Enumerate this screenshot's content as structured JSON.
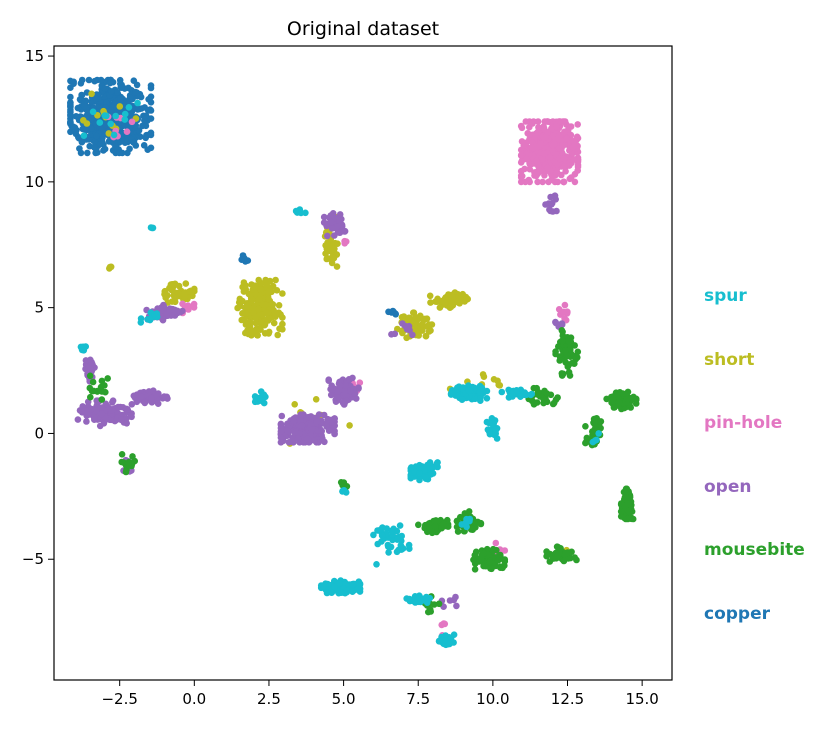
{
  "chart_data": {
    "type": "scatter",
    "title": "Original dataset",
    "xlabel": "",
    "ylabel": "",
    "xlim": [
      -4.7,
      16.0
    ],
    "ylim": [
      -9.8,
      15.4
    ],
    "x_ticks": [
      -2.5,
      0.0,
      2.5,
      5.0,
      7.5,
      10.0,
      12.5,
      15.0
    ],
    "x_tick_labels": [
      "−2.5",
      "0.0",
      "2.5",
      "5.0",
      "7.5",
      "10.0",
      "12.5",
      "15.0"
    ],
    "y_ticks": [
      -5,
      0,
      5,
      10,
      15
    ],
    "y_tick_labels": [
      "−5",
      "0",
      "5",
      "10",
      "15"
    ],
    "grid": false,
    "legend_placement": "right-outside",
    "legend": [
      {
        "label": "spur",
        "color": "#17becf"
      },
      {
        "label": "short",
        "color": "#bcbd22"
      },
      {
        "label": "pin-hole",
        "color": "#e377c2"
      },
      {
        "label": "open",
        "color": "#9467bd"
      },
      {
        "label": "mousebite",
        "color": "#2ca02c"
      },
      {
        "label": "copper",
        "color": "#1f77b4"
      }
    ],
    "series": [
      {
        "name": "copper",
        "color": "#1f77b4",
        "clusters": [
          {
            "cx": -2.8,
            "cy": 12.6,
            "sx": 1.35,
            "sy": 1.45,
            "n": 520
          },
          {
            "cx": 1.7,
            "cy": 6.9,
            "sx": 0.15,
            "sy": 0.2,
            "n": 6
          },
          {
            "cx": 6.6,
            "cy": 4.8,
            "sx": 0.3,
            "sy": 0.1,
            "n": 6
          }
        ]
      },
      {
        "name": "short",
        "color": "#bcbd22",
        "clusters": [
          {
            "cx": 2.2,
            "cy": 5.0,
            "sx": 0.75,
            "sy": 1.1,
            "n": 170
          },
          {
            "cx": -0.5,
            "cy": 5.6,
            "sx": 0.5,
            "sy": 0.4,
            "n": 50
          },
          {
            "cx": 4.6,
            "cy": 7.6,
            "sx": 0.3,
            "sy": 1.0,
            "n": 40
          },
          {
            "cx": 7.4,
            "cy": 4.3,
            "sx": 0.6,
            "sy": 0.5,
            "n": 60
          },
          {
            "cx": 8.6,
            "cy": 5.3,
            "sx": 0.7,
            "sy": 0.3,
            "n": 60
          },
          {
            "cx": -2.8,
            "cy": 6.6,
            "sx": 0.05,
            "sy": 0.05,
            "n": 3
          },
          {
            "cx": 4.2,
            "cy": 0.4,
            "sx": 1.0,
            "sy": 1.2,
            "n": 12
          },
          {
            "cx": -2.8,
            "cy": 12.5,
            "sx": 1.0,
            "sy": 1.0,
            "n": 12
          },
          {
            "cx": 12.4,
            "cy": -4.8,
            "sx": 0.3,
            "sy": 0.2,
            "n": 6
          },
          {
            "cx": 9.5,
            "cy": 2.0,
            "sx": 1.0,
            "sy": 0.4,
            "n": 10
          }
        ]
      },
      {
        "name": "pin-hole",
        "color": "#e377c2",
        "clusters": [
          {
            "cx": 11.9,
            "cy": 11.2,
            "sx": 0.95,
            "sy": 1.2,
            "n": 420
          },
          {
            "cx": 12.4,
            "cy": 4.8,
            "sx": 0.2,
            "sy": 0.3,
            "n": 10
          },
          {
            "cx": -0.1,
            "cy": 5.0,
            "sx": 0.3,
            "sy": 0.3,
            "n": 8
          },
          {
            "cx": 5.3,
            "cy": 1.8,
            "sx": 0.3,
            "sy": 0.3,
            "n": 6
          },
          {
            "cx": 5.0,
            "cy": 7.6,
            "sx": 0.1,
            "sy": 0.2,
            "n": 3
          },
          {
            "cx": 8.3,
            "cy": -7.8,
            "sx": 0.3,
            "sy": 0.3,
            "n": 4
          },
          {
            "cx": -2.6,
            "cy": 12.4,
            "sx": 0.8,
            "sy": 0.8,
            "n": 8
          },
          {
            "cx": 10.2,
            "cy": -4.6,
            "sx": 0.3,
            "sy": 0.3,
            "n": 4
          }
        ]
      },
      {
        "name": "open",
        "color": "#9467bd",
        "clusters": [
          {
            "cx": 3.8,
            "cy": 0.2,
            "sx": 0.9,
            "sy": 0.55,
            "n": 200
          },
          {
            "cx": 5.0,
            "cy": 1.7,
            "sx": 0.5,
            "sy": 0.55,
            "n": 80
          },
          {
            "cx": -3.0,
            "cy": 0.8,
            "sx": 0.9,
            "sy": 0.5,
            "n": 120
          },
          {
            "cx": -1.5,
            "cy": 1.4,
            "sx": 0.6,
            "sy": 0.3,
            "n": 50
          },
          {
            "cx": -3.5,
            "cy": 2.5,
            "sx": 0.2,
            "sy": 0.5,
            "n": 30
          },
          {
            "cx": -1.0,
            "cy": 4.8,
            "sx": 0.6,
            "sy": 0.3,
            "n": 60
          },
          {
            "cx": 4.7,
            "cy": 8.3,
            "sx": 0.35,
            "sy": 0.45,
            "n": 40
          },
          {
            "cx": 12.0,
            "cy": 9.0,
            "sx": 0.25,
            "sy": 0.5,
            "n": 12
          },
          {
            "cx": 7.0,
            "cy": 4.2,
            "sx": 0.4,
            "sy": 0.4,
            "n": 8
          },
          {
            "cx": 12.2,
            "cy": 4.3,
            "sx": 0.3,
            "sy": 0.15,
            "n": 6
          },
          {
            "cx": -2.2,
            "cy": -1.3,
            "sx": 0.3,
            "sy": 0.3,
            "n": 8
          },
          {
            "cx": 8.5,
            "cy": -6.8,
            "sx": 0.5,
            "sy": 0.3,
            "n": 6
          }
        ]
      },
      {
        "name": "mousebite",
        "color": "#2ca02c",
        "clusters": [
          {
            "cx": 14.5,
            "cy": -2.8,
            "sx": 0.2,
            "sy": 0.6,
            "n": 70
          },
          {
            "cx": 14.3,
            "cy": 1.3,
            "sx": 0.5,
            "sy": 0.35,
            "n": 70
          },
          {
            "cx": 13.4,
            "cy": 0.0,
            "sx": 0.3,
            "sy": 0.6,
            "n": 40
          },
          {
            "cx": 12.5,
            "cy": 3.2,
            "sx": 0.4,
            "sy": 0.9,
            "n": 60
          },
          {
            "cx": 11.7,
            "cy": 1.4,
            "sx": 0.5,
            "sy": 0.4,
            "n": 30
          },
          {
            "cx": 9.2,
            "cy": -3.5,
            "sx": 0.4,
            "sy": 0.4,
            "n": 40
          },
          {
            "cx": 8.0,
            "cy": -3.7,
            "sx": 0.5,
            "sy": 0.25,
            "n": 40
          },
          {
            "cx": 9.8,
            "cy": -5.0,
            "sx": 0.6,
            "sy": 0.4,
            "n": 60
          },
          {
            "cx": 12.3,
            "cy": -4.8,
            "sx": 0.5,
            "sy": 0.3,
            "n": 40
          },
          {
            "cx": 7.9,
            "cy": -6.7,
            "sx": 0.3,
            "sy": 0.4,
            "n": 15
          },
          {
            "cx": -2.2,
            "cy": -1.2,
            "sx": 0.25,
            "sy": 0.4,
            "n": 15
          },
          {
            "cx": -3.2,
            "cy": 1.8,
            "sx": 0.3,
            "sy": 0.5,
            "n": 15
          },
          {
            "cx": 5.0,
            "cy": -2.1,
            "sx": 0.15,
            "sy": 0.2,
            "n": 8
          }
        ]
      },
      {
        "name": "spur",
        "color": "#17becf",
        "clusters": [
          {
            "cx": 7.7,
            "cy": -1.5,
            "sx": 0.45,
            "sy": 0.35,
            "n": 70
          },
          {
            "cx": 4.9,
            "cy": -6.1,
            "sx": 0.65,
            "sy": 0.25,
            "n": 100
          },
          {
            "cx": 6.6,
            "cy": -4.3,
            "sx": 0.6,
            "sy": 0.9,
            "n": 40
          },
          {
            "cx": 7.5,
            "cy": -6.6,
            "sx": 0.45,
            "sy": 0.15,
            "n": 30
          },
          {
            "cx": 8.4,
            "cy": -8.2,
            "sx": 0.3,
            "sy": 0.2,
            "n": 25
          },
          {
            "cx": 9.2,
            "cy": 1.6,
            "sx": 0.6,
            "sy": 0.3,
            "n": 60
          },
          {
            "cx": 10.8,
            "cy": 1.6,
            "sx": 0.5,
            "sy": 0.2,
            "n": 30
          },
          {
            "cx": 10.0,
            "cy": 0.2,
            "sx": 0.2,
            "sy": 0.4,
            "n": 20
          },
          {
            "cx": -3.7,
            "cy": 3.4,
            "sx": 0.1,
            "sy": 0.15,
            "n": 8
          },
          {
            "cx": 2.2,
            "cy": 1.4,
            "sx": 0.3,
            "sy": 0.3,
            "n": 15
          },
          {
            "cx": -1.5,
            "cy": 4.6,
            "sx": 0.3,
            "sy": 0.2,
            "n": 10
          },
          {
            "cx": 5.0,
            "cy": -2.3,
            "sx": 0.1,
            "sy": 0.1,
            "n": 6
          },
          {
            "cx": -1.4,
            "cy": 8.2,
            "sx": 0.05,
            "sy": 0.05,
            "n": 3
          },
          {
            "cx": -2.8,
            "cy": 12.5,
            "sx": 0.9,
            "sy": 0.9,
            "n": 12
          },
          {
            "cx": 3.6,
            "cy": 8.8,
            "sx": 0.2,
            "sy": 0.1,
            "n": 6
          },
          {
            "cx": 13.4,
            "cy": -0.2,
            "sx": 0.15,
            "sy": 0.2,
            "n": 4
          },
          {
            "cx": 9.1,
            "cy": -3.6,
            "sx": 0.2,
            "sy": 0.2,
            "n": 6
          }
        ]
      }
    ]
  }
}
